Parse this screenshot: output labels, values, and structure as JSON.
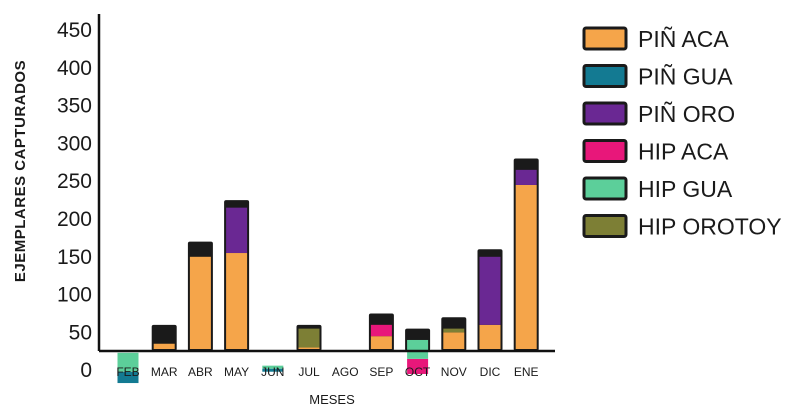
{
  "chart_data": {
    "type": "bar",
    "stacked": true,
    "categories": [
      "FEB",
      "MAR",
      "ABR",
      "MAY",
      "JUN",
      "JUL",
      "AGO",
      "SEP",
      "OCT",
      "NOV",
      "DIC",
      "ENE"
    ],
    "xlabel": "MESES",
    "ylabel": "EJEMPLARES CAPTURADOS",
    "yticks": [
      "0",
      "50",
      "100",
      "150",
      "200",
      "250",
      "300",
      "350",
      "400",
      "450"
    ],
    "ytick_values": [
      0,
      50,
      100,
      150,
      200,
      250,
      300,
      350,
      400,
      450
    ],
    "axis_mapping": {
      "tick_value": [
        0,
        450
      ],
      "data_value": [
        35,
        485
      ]
    },
    "legend_position": "right",
    "series": [
      {
        "name": "PIÑ ACA",
        "color": "#f5a54a",
        "values": [
          18,
          70,
          185,
          190,
          33,
          65,
          0,
          80,
          30,
          85,
          95,
          280
        ]
      },
      {
        "name": "PIÑ GUA",
        "color": "#137a92",
        "values": [
          15,
          0,
          0,
          0,
          4,
          0,
          0,
          0,
          0,
          0,
          0,
          0
        ]
      },
      {
        "name": "PIÑ ORO",
        "color": "#6a2893",
        "values": [
          0,
          0,
          0,
          60,
          0,
          0,
          0,
          0,
          0,
          0,
          90,
          20
        ]
      },
      {
        "name": "HIP ACA",
        "color": "#e8177a",
        "values": [
          0,
          0,
          0,
          0,
          0,
          0,
          0,
          15,
          20,
          0,
          0,
          0
        ]
      },
      {
        "name": "HIP GUA",
        "color": "#5ccf9a",
        "values": [
          25,
          0,
          0,
          0,
          4,
          0,
          0,
          0,
          25,
          0,
          0,
          0
        ]
      },
      {
        "name": "HIP OROTOY",
        "color": "#7d7f35",
        "values": [
          0,
          0,
          0,
          0,
          0,
          25,
          0,
          0,
          0,
          5,
          0,
          0
        ]
      }
    ],
    "other_totals": [
      45,
      95,
      205,
      260,
      60,
      95,
      12,
      110,
      90,
      105,
      195,
      315
    ]
  }
}
